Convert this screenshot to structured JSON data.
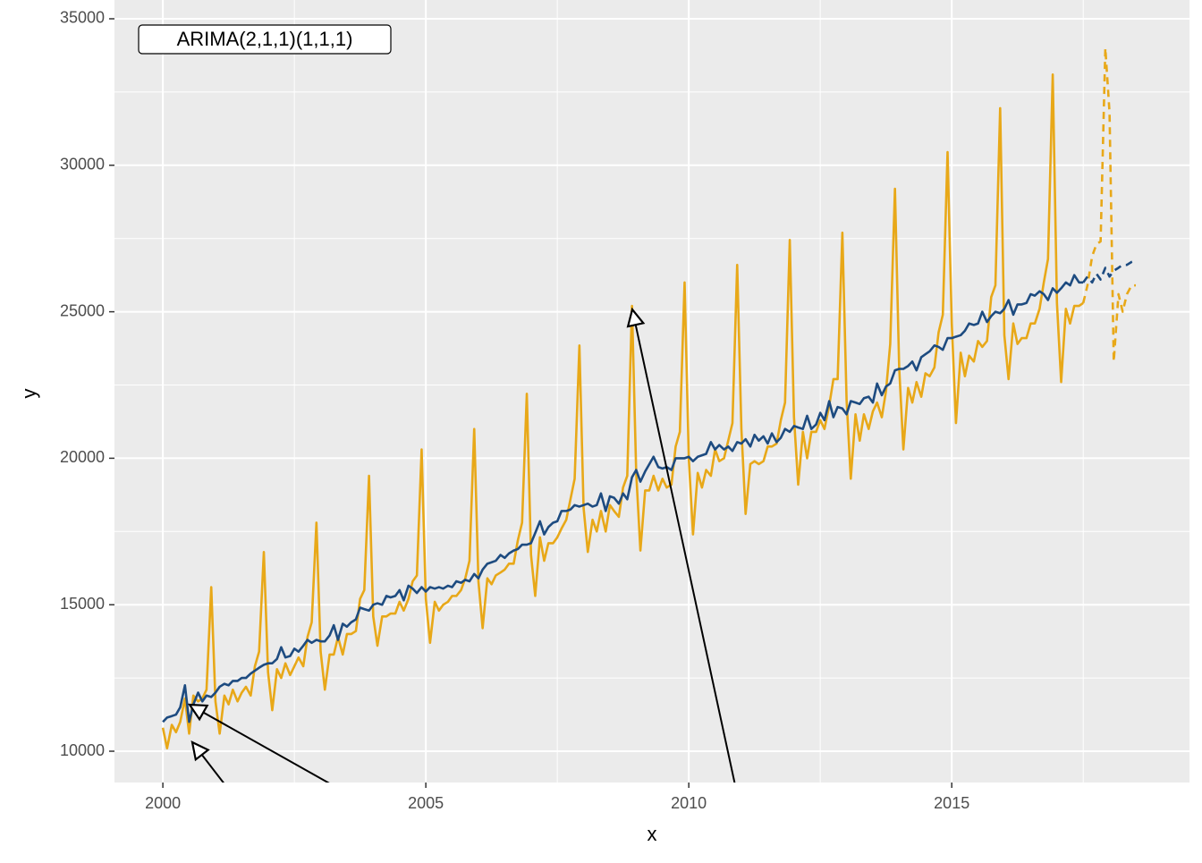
{
  "chart_data": {
    "type": "line",
    "x_label": "x",
    "y_label": "y",
    "annotation": "ARIMA(2,1,1)(1,1,1)",
    "xlim": [
      1999.08,
      2019.52
    ],
    "ylim": [
      8932,
      35641
    ],
    "xticks": [
      2000,
      2005,
      2010,
      2015
    ],
    "yticks": [
      10000,
      15000,
      20000,
      25000,
      30000,
      35000
    ],
    "xminor_ticks": [
      2002.5,
      2007.5,
      2012.5,
      2017.5
    ],
    "yminor_ticks": [
      12500,
      17500,
      22500,
      27500,
      32500
    ],
    "grid": true,
    "x": [
      2000,
      2000.08,
      2000.17,
      2000.25,
      2000.33,
      2000.42,
      2000.5,
      2000.58,
      2000.67,
      2000.75,
      2000.83,
      2000.92,
      2001,
      2001.08,
      2001.17,
      2001.25,
      2001.33,
      2001.42,
      2001.5,
      2001.58,
      2001.67,
      2001.75,
      2001.83,
      2001.92,
      2002,
      2002.08,
      2002.17,
      2002.25,
      2002.33,
      2002.42,
      2002.5,
      2002.58,
      2002.67,
      2002.75,
      2002.83,
      2002.92,
      2003,
      2003.08,
      2003.17,
      2003.25,
      2003.33,
      2003.42,
      2003.5,
      2003.58,
      2003.67,
      2003.75,
      2003.83,
      2003.92,
      2004,
      2004.08,
      2004.17,
      2004.25,
      2004.33,
      2004.42,
      2004.5,
      2004.58,
      2004.67,
      2004.75,
      2004.83,
      2004.92,
      2005,
      2005.08,
      2005.17,
      2005.25,
      2005.33,
      2005.42,
      2005.5,
      2005.58,
      2005.67,
      2005.75,
      2005.83,
      2005.92,
      2006,
      2006.08,
      2006.17,
      2006.25,
      2006.33,
      2006.42,
      2006.5,
      2006.58,
      2006.67,
      2006.75,
      2006.83,
      2006.92,
      2007,
      2007.08,
      2007.17,
      2007.25,
      2007.33,
      2007.42,
      2007.5,
      2007.58,
      2007.67,
      2007.75,
      2007.83,
      2007.92,
      2008,
      2008.08,
      2008.17,
      2008.25,
      2008.33,
      2008.42,
      2008.5,
      2008.58,
      2008.67,
      2008.75,
      2008.83,
      2008.92,
      2009,
      2009.08,
      2009.17,
      2009.25,
      2009.33,
      2009.42,
      2009.5,
      2009.58,
      2009.67,
      2009.75,
      2009.83,
      2009.92,
      2010,
      2010.08,
      2010.17,
      2010.25,
      2010.33,
      2010.42,
      2010.5,
      2010.58,
      2010.67,
      2010.75,
      2010.83,
      2010.92,
      2011,
      2011.08,
      2011.17,
      2011.25,
      2011.33,
      2011.42,
      2011.5,
      2011.58,
      2011.67,
      2011.75,
      2011.83,
      2011.92,
      2012,
      2012.08,
      2012.17,
      2012.25,
      2012.33,
      2012.42,
      2012.5,
      2012.58,
      2012.67,
      2012.75,
      2012.83,
      2012.92,
      2013,
      2013.08,
      2013.17,
      2013.25,
      2013.33,
      2013.42,
      2013.5,
      2013.58,
      2013.67,
      2013.75,
      2013.83,
      2013.92,
      2014,
      2014.08,
      2014.17,
      2014.25,
      2014.33,
      2014.42,
      2014.5,
      2014.58,
      2014.67,
      2014.75,
      2014.83,
      2014.92,
      2015,
      2015.08,
      2015.17,
      2015.25,
      2015.33,
      2015.42,
      2015.5,
      2015.58,
      2015.67,
      2015.75,
      2015.83,
      2015.92,
      2016,
      2016.08,
      2016.17,
      2016.25,
      2016.33,
      2016.42,
      2016.5,
      2016.58,
      2016.67,
      2016.75,
      2016.83,
      2016.92,
      2017,
      2017.08,
      2017.17,
      2017.25,
      2017.33,
      2017.42,
      2017.5
    ],
    "series": [
      {
        "color": "#E8A818",
        "dashed": false,
        "values": [
          10800,
          10100,
          10900,
          10650,
          11000,
          11800,
          10600,
          11900,
          11700,
          11800,
          12100,
          15600,
          11700,
          10600,
          11900,
          11600,
          12100,
          11700,
          12000,
          12200,
          11900,
          12900,
          13400,
          16800,
          12700,
          11400,
          12800,
          12500,
          13000,
          12600,
          12900,
          13200,
          12900,
          13900,
          14400,
          17800,
          13400,
          12100,
          13300,
          13300,
          13900,
          13300,
          14000,
          14000,
          14100,
          15200,
          15500,
          19400,
          14600,
          13600,
          14600,
          14600,
          14700,
          14700,
          15100,
          14800,
          15200,
          15800,
          16000,
          20300,
          15200,
          13700,
          15100,
          14800,
          15000,
          15100,
          15300,
          15300,
          15500,
          15900,
          16500,
          21000,
          15800,
          14200,
          15900,
          15700,
          16000,
          16100,
          16200,
          16400,
          16400,
          17200,
          17800,
          22200,
          16700,
          15300,
          17300,
          16500,
          17100,
          17100,
          17300,
          17600,
          17900,
          18600,
          19300,
          23850,
          18300,
          16800,
          17900,
          17500,
          18200,
          17500,
          18400,
          18200,
          18000,
          19000,
          19400,
          25200,
          19500,
          16850,
          18900,
          18900,
          19400,
          18900,
          19300,
          19000,
          19100,
          20400,
          20900,
          26000,
          20000,
          17400,
          19500,
          19000,
          19600,
          19400,
          20300,
          19900,
          20000,
          20600,
          21200,
          26600,
          21000,
          18100,
          19800,
          19900,
          19800,
          19900,
          20400,
          20400,
          20500,
          21300,
          21900,
          27450,
          21400,
          19100,
          20900,
          20000,
          20900,
          20900,
          21300,
          21000,
          21800,
          22700,
          22700,
          27700,
          22000,
          19300,
          21500,
          20600,
          21500,
          21000,
          21600,
          21900,
          21400,
          22300,
          23900,
          29200,
          23100,
          20300,
          22400,
          21900,
          22600,
          22100,
          22900,
          22800,
          23100,
          24300,
          24900,
          30450,
          24600,
          21200,
          23600,
          22800,
          23500,
          23300,
          24000,
          23800,
          24000,
          25500,
          25900,
          31950,
          24200,
          22700,
          24600,
          23900,
          24100,
          24100,
          24600,
          24600,
          25100,
          26000,
          26800,
          33100,
          25300,
          22600,
          25100,
          24600,
          25200,
          25200,
          25300
        ]
      },
      {
        "color": "#1D4B80",
        "dashed": false,
        "values": [
          11000,
          11150,
          11200,
          11250,
          11500,
          12250,
          11000,
          11600,
          12000,
          11700,
          11900,
          11850,
          12000,
          12200,
          12300,
          12250,
          12400,
          12400,
          12500,
          12500,
          12650,
          12750,
          12850,
          12950,
          13000,
          13000,
          13150,
          13550,
          13200,
          13250,
          13500,
          13400,
          13600,
          13800,
          13700,
          13800,
          13750,
          13750,
          13950,
          14300,
          13800,
          14350,
          14250,
          14400,
          14500,
          14900,
          14850,
          14800,
          15000,
          15050,
          15000,
          15300,
          15250,
          15300,
          15500,
          15150,
          15650,
          15550,
          15400,
          15600,
          15450,
          15600,
          15550,
          15600,
          15550,
          15650,
          15600,
          15800,
          15750,
          15850,
          15800,
          16050,
          15900,
          16200,
          16400,
          16450,
          16500,
          16700,
          16600,
          16750,
          16850,
          16900,
          17050,
          17050,
          17100,
          17450,
          17850,
          17400,
          17650,
          17800,
          17850,
          18200,
          18200,
          18250,
          18400,
          18350,
          18400,
          18450,
          18350,
          18400,
          18800,
          18200,
          18700,
          18650,
          18450,
          18800,
          18600,
          19350,
          19600,
          19200,
          19550,
          19800,
          20050,
          19700,
          19650,
          19700,
          19600,
          20000,
          20000,
          20000,
          20050,
          19900,
          20050,
          20100,
          20150,
          20550,
          20300,
          20450,
          20300,
          20400,
          20250,
          20550,
          20500,
          20650,
          20400,
          20800,
          20600,
          20750,
          20500,
          20850,
          20550,
          20700,
          21000,
          20900,
          21100,
          21050,
          21000,
          21450,
          21000,
          21150,
          21550,
          21300,
          21950,
          21400,
          21750,
          21700,
          21500,
          21950,
          21900,
          21850,
          22050,
          22100,
          21900,
          22550,
          22150,
          22450,
          22550,
          23000,
          23050,
          23050,
          23150,
          23300,
          23000,
          23450,
          23550,
          23650,
          23850,
          23800,
          23700,
          24100,
          24100,
          24150,
          24200,
          24350,
          24600,
          24550,
          24600,
          25000,
          24650,
          24850,
          25000,
          24950,
          25100,
          25400,
          24900,
          25250,
          25250,
          25300,
          25600,
          25550,
          25700,
          25600,
          25400,
          25800,
          25650,
          25800,
          26000,
          25900,
          26250,
          26000,
          26000
        ]
      },
      {
        "color": "#E8A818",
        "dashed": true,
        "x": [
          2017.5,
          2017.58,
          2017.67,
          2017.75,
          2017.83,
          2017.92,
          2018,
          2018.08,
          2018.17,
          2018.25,
          2018.33,
          2018.42,
          2018.5
        ],
        "values": [
          25300,
          25900,
          26900,
          27300,
          27400,
          34000,
          31800,
          23300,
          25600,
          25000,
          25600,
          25900,
          25900
        ]
      },
      {
        "color": "#1D4B80",
        "dashed": true,
        "x": [
          2017.5,
          2017.58,
          2017.67,
          2017.75,
          2017.83,
          2017.92,
          2018,
          2018.08,
          2018.17,
          2018.25,
          2018.33,
          2018.42,
          2018.5
        ],
        "values": [
          26000,
          26200,
          26000,
          26300,
          26100,
          26500,
          26200,
          26400,
          26500,
          26600,
          26600,
          26700,
          26750
        ]
      }
    ]
  }
}
